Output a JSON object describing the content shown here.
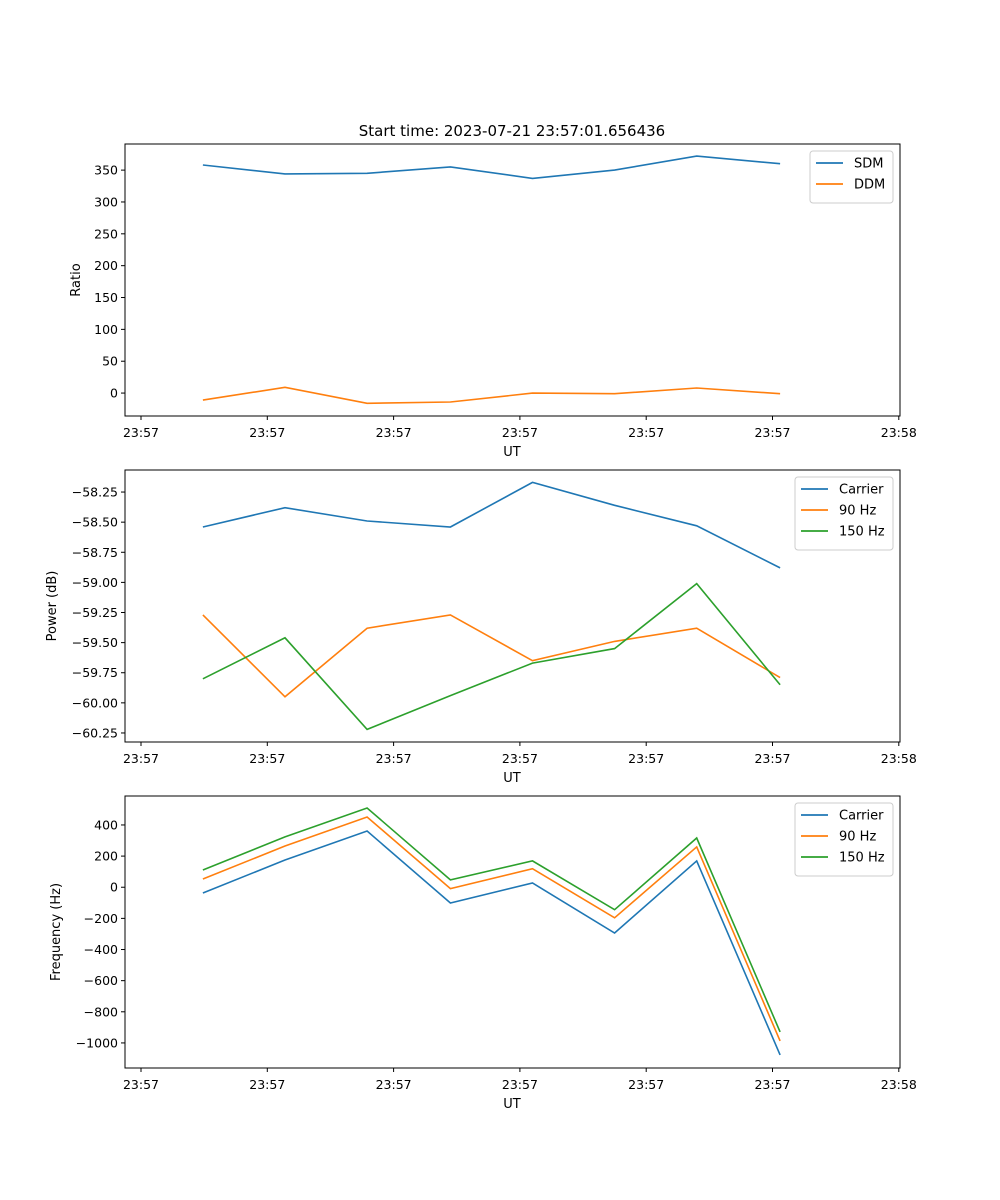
{
  "chart_data": [
    {
      "type": "line",
      "title": "Start time: 2023-07-21 23:57:01.656436",
      "xlabel": "UT",
      "ylabel": "Ratio",
      "xticks": [
        "23:57",
        "23:57",
        "23:57",
        "23:57",
        "23:57",
        "23:57",
        "23:58"
      ],
      "x_seconds_after_2357": [
        4.9,
        11.4,
        17.9,
        24.5,
        31.0,
        37.5,
        44.0,
        50.6
      ],
      "ylim": [
        -36,
        391
      ],
      "yticks": [
        0,
        50,
        100,
        150,
        200,
        250,
        300,
        350
      ],
      "legend": "top-right",
      "series": [
        {
          "name": "SDM",
          "color": "#1f77b4",
          "values": [
            358,
            344,
            345,
            355,
            337,
            350,
            372,
            360
          ]
        },
        {
          "name": "DDM",
          "color": "#ff7f0e",
          "values": [
            -11,
            9,
            -16,
            -14,
            0,
            -1,
            8,
            -1
          ]
        }
      ]
    },
    {
      "type": "line",
      "title": "",
      "xlabel": "UT",
      "ylabel": "Power (dB)",
      "xticks": [
        "23:57",
        "23:57",
        "23:57",
        "23:57",
        "23:57",
        "23:57",
        "23:58"
      ],
      "x_seconds_after_2357": [
        4.9,
        11.4,
        17.9,
        24.5,
        31.0,
        37.5,
        44.0,
        50.6
      ],
      "ylim": [
        -60.325,
        -58.067
      ],
      "yticks": [
        -60.25,
        -60.0,
        -59.75,
        -59.5,
        -59.25,
        -59.0,
        -58.75,
        -58.5,
        -58.25
      ],
      "legend": "top-right",
      "series": [
        {
          "name": "Carrier",
          "color": "#1f77b4",
          "values": [
            -58.54,
            -58.38,
            -58.49,
            -58.54,
            -58.17,
            -58.36,
            -58.53,
            -58.88
          ]
        },
        {
          "name": "90 Hz",
          "color": "#ff7f0e",
          "values": [
            -59.27,
            -59.95,
            -59.38,
            -59.27,
            -59.65,
            -59.49,
            -59.38,
            -59.79
          ]
        },
        {
          "name": "150 Hz",
          "color": "#2ca02c",
          "values": [
            -59.8,
            -59.46,
            -60.22,
            -59.94,
            -59.67,
            -59.55,
            -59.01,
            -59.85
          ]
        }
      ]
    },
    {
      "type": "line",
      "title": "",
      "xlabel": "UT",
      "ylabel": "Frequency (Hz)",
      "xticks": [
        "23:57",
        "23:57",
        "23:57",
        "23:57",
        "23:57",
        "23:57",
        "23:58"
      ],
      "x_seconds_after_2357": [
        4.9,
        11.4,
        17.9,
        24.5,
        31.0,
        37.5,
        44.0,
        50.6
      ],
      "ylim": [
        -1161,
        586
      ],
      "yticks": [
        -1000,
        -800,
        -600,
        -400,
        -200,
        0,
        200,
        400
      ],
      "legend": "top-right",
      "series": [
        {
          "name": "Carrier",
          "color": "#1f77b4",
          "values": [
            -37,
            175,
            361,
            -101,
            27,
            -294,
            169,
            -1077
          ]
        },
        {
          "name": "90 Hz",
          "color": "#ff7f0e",
          "values": [
            53,
            265,
            451,
            -9,
            119,
            -196,
            259,
            -987
          ]
        },
        {
          "name": "150 Hz",
          "color": "#2ca02c",
          "values": [
            111,
            323,
            509,
            47,
            169,
            -144,
            316,
            -929
          ]
        }
      ]
    }
  ]
}
